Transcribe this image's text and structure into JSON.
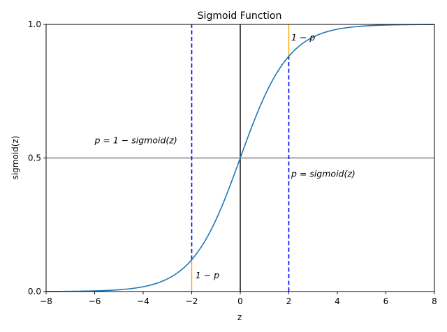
{
  "chart_data": {
    "type": "line",
    "title": "Sigmoid Function",
    "xlabel": "z",
    "ylabel": "sigmoid(z)",
    "xlim": [
      -8,
      8
    ],
    "ylim": [
      0.0,
      1.0
    ],
    "xticks": [
      "−8",
      "−6",
      "−4",
      "−2",
      "0",
      "2",
      "4",
      "6",
      "8"
    ],
    "yticks": [
      "0.0",
      "0.5",
      "1.0"
    ],
    "xtick_values": [
      -8,
      -6,
      -4,
      -2,
      0,
      2,
      4,
      6,
      8
    ],
    "ytick_values": [
      0.0,
      0.5,
      1.0
    ],
    "grid": false,
    "series": [
      {
        "function": "sigmoid",
        "x": [
          -8,
          -6,
          -4,
          -3,
          -2,
          -1,
          -0.5,
          0,
          0.5,
          1,
          2,
          3,
          4,
          6,
          8
        ],
        "y": [
          0.0003,
          0.0025,
          0.018,
          0.047,
          0.119,
          0.269,
          0.378,
          0.5,
          0.622,
          0.731,
          0.881,
          0.953,
          0.982,
          0.9975,
          0.9997
        ],
        "color": "#1f77b4"
      }
    ],
    "reference_lines": [
      {
        "orientation": "horizontal",
        "value": 0.5,
        "color": "#808080",
        "style": "solid"
      },
      {
        "orientation": "vertical",
        "value": 0,
        "color": "#000000",
        "style": "solid"
      },
      {
        "orientation": "vertical",
        "value": -2,
        "color": "#0000ff",
        "style": "dashed",
        "from": 0.119,
        "to": 1.0
      },
      {
        "orientation": "vertical",
        "value": 2,
        "color": "#0000ff",
        "style": "dashed",
        "from": 0.0,
        "to": 0.881
      },
      {
        "orientation": "vertical",
        "value": -2,
        "color": "#ffa500",
        "style": "solid",
        "from": 0.0,
        "to": 0.119
      },
      {
        "orientation": "vertical",
        "value": 2,
        "color": "#ffa500",
        "style": "solid",
        "from": 0.881,
        "to": 1.0
      }
    ],
    "annotations": [
      {
        "text": "1 − p",
        "x": -1.85,
        "y": 0.06
      },
      {
        "text": "1 − p",
        "x": 2.1,
        "y": 0.95
      },
      {
        "text": "p = 1 − sigmoid(z)",
        "x": -6.0,
        "y": 0.565
      },
      {
        "text": "p = sigmoid(z)",
        "x": 2.1,
        "y": 0.44
      }
    ]
  }
}
